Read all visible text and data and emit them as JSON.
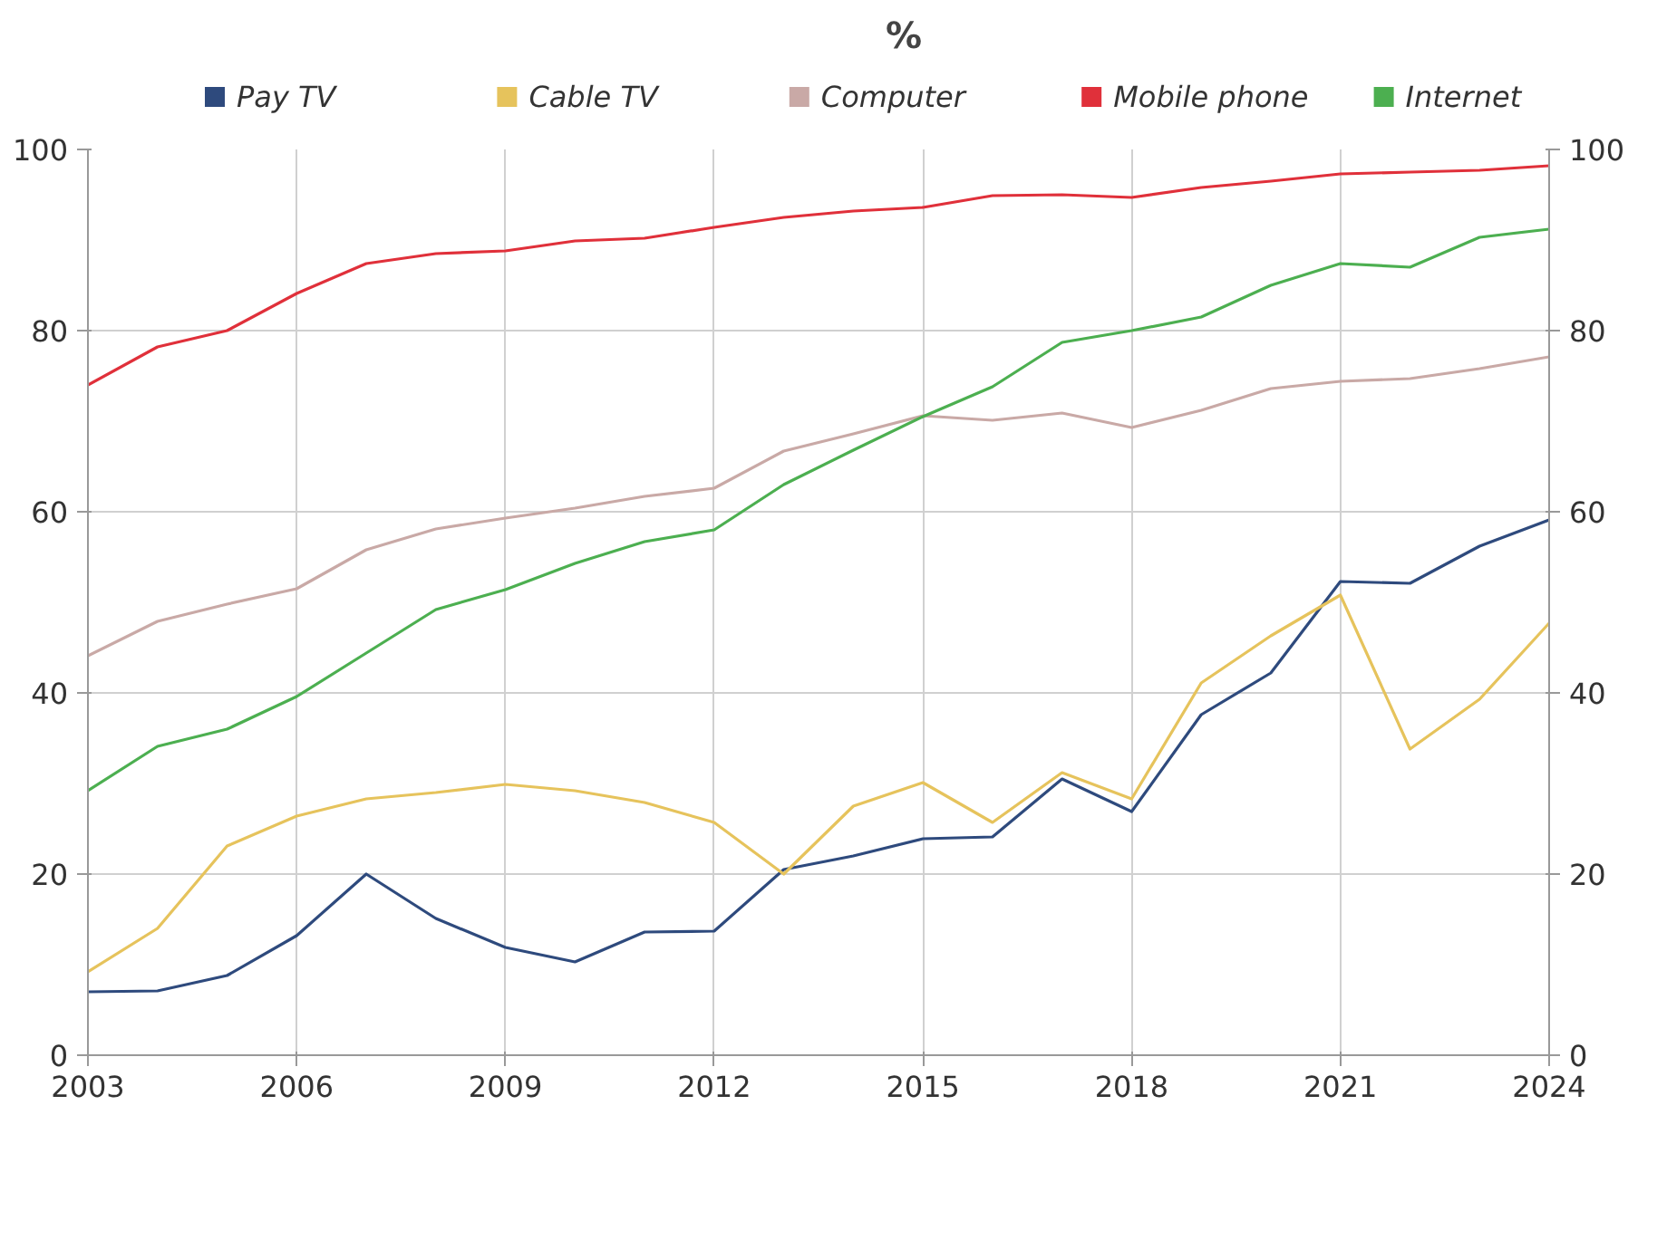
{
  "chart_data": {
    "type": "line",
    "title": "%",
    "x": [
      2003,
      2004,
      2005,
      2006,
      2007,
      2008,
      2009,
      2010,
      2011,
      2012,
      2013,
      2014,
      2015,
      2016,
      2017,
      2018,
      2019,
      2020,
      2021,
      2022,
      2023,
      2024
    ],
    "series": [
      {
        "name": "Pay TV",
        "color": "#2e4a7d",
        "values": [
          7.0,
          7.1,
          8.8,
          13.2,
          20.0,
          15.1,
          11.9,
          10.3,
          13.6,
          13.7,
          20.5,
          22.0,
          23.9,
          24.1,
          30.5,
          26.9,
          37.6,
          42.2,
          52.3,
          52.1,
          56.2,
          59.1
        ]
      },
      {
        "name": "Cable TV",
        "color": "#e6c35c",
        "values": [
          9.2,
          14.0,
          23.1,
          26.4,
          28.3,
          29.0,
          29.9,
          29.2,
          27.9,
          25.7,
          20.0,
          27.5,
          30.1,
          25.7,
          31.2,
          28.3,
          41.1,
          46.3,
          50.8,
          33.8,
          39.3,
          47.7
        ]
      },
      {
        "name": "Computer",
        "color": "#c9a9a6",
        "values": [
          44.1,
          47.9,
          49.8,
          51.5,
          55.8,
          58.1,
          59.3,
          60.4,
          61.7,
          62.6,
          66.7,
          68.6,
          70.6,
          70.1,
          70.9,
          69.3,
          71.2,
          73.6,
          74.4,
          74.7,
          75.8,
          77.1
        ]
      },
      {
        "name": "Mobile phone",
        "color": "#e0303a",
        "values": [
          74.0,
          78.2,
          80.0,
          84.1,
          87.4,
          88.5,
          88.8,
          89.9,
          90.2,
          91.4,
          92.5,
          93.2,
          93.6,
          94.9,
          95.0,
          94.7,
          95.8,
          96.5,
          97.3,
          97.5,
          97.7,
          98.2
        ]
      },
      {
        "name": "Internet",
        "color": "#4caf50",
        "values": [
          29.2,
          34.1,
          36.0,
          39.6,
          44.4,
          49.2,
          51.4,
          54.3,
          56.7,
          58.0,
          63.0,
          66.8,
          70.5,
          73.8,
          78.7,
          80.0,
          81.5,
          85.0,
          87.4,
          87.0,
          90.3,
          91.2
        ]
      }
    ],
    "xlim": [
      2003,
      2024
    ],
    "xticks": [
      2003,
      2006,
      2009,
      2012,
      2015,
      2018,
      2021,
      2024
    ],
    "ylim": [
      0,
      100
    ],
    "yticks": [
      0,
      20,
      40,
      60,
      80,
      100
    ],
    "y2lim": [
      0,
      100
    ],
    "y2ticks": [
      0,
      20,
      40,
      60,
      80,
      100
    ],
    "grid": true,
    "legend": "top",
    "marker": "none",
    "line_style": "solid"
  }
}
